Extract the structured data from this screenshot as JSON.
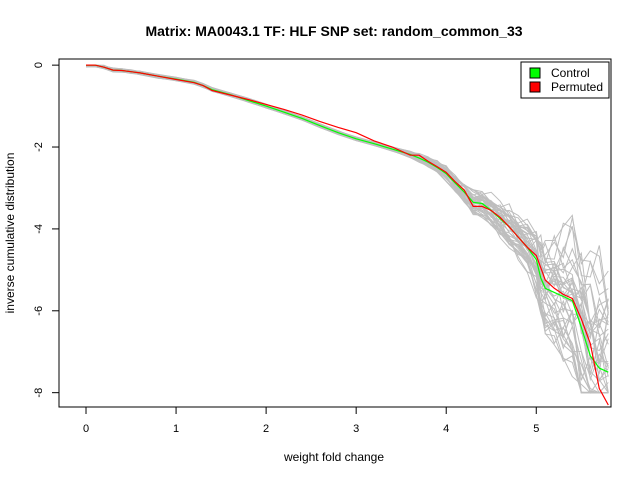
{
  "chart_data": {
    "type": "line",
    "title": "Matrix: MA0043.1 TF: HLF SNP set: random_common_33",
    "xlabel": "weight fold change",
    "ylabel": "inverse cumulative distribution",
    "xlim": [
      -0.3,
      5.83
    ],
    "ylim": [
      -8.35,
      0.15
    ],
    "xticks": [
      0,
      1,
      2,
      3,
      4,
      5
    ],
    "yticks": [
      0,
      -2,
      -4,
      -6,
      -8
    ],
    "legend": {
      "position": "top-right",
      "entries": [
        {
          "name": "Control",
          "color": "#00ff00"
        },
        {
          "name": "Permuted",
          "color": "#ff0000"
        }
      ]
    },
    "background_series_color": "#bebebe",
    "background_series_count": 40,
    "series": [
      {
        "name": "Control",
        "color": "#00ff00",
        "x": [
          0.0,
          0.1,
          0.2,
          0.3,
          0.4,
          0.5,
          0.6,
          0.8,
          1.0,
          1.2,
          1.3,
          1.4,
          1.6,
          1.8,
          2.0,
          2.2,
          2.4,
          2.6,
          2.8,
          3.0,
          3.2,
          3.4,
          3.6,
          3.7,
          3.8,
          3.9,
          4.0,
          4.1,
          4.2,
          4.3,
          4.4,
          4.5,
          4.6,
          4.7,
          4.8,
          4.9,
          5.0,
          5.05,
          5.1,
          5.2,
          5.3,
          5.4,
          5.5,
          5.6,
          5.7,
          5.8
        ],
        "y": [
          0.0,
          0.0,
          -0.05,
          -0.12,
          -0.13,
          -0.16,
          -0.19,
          -0.27,
          -0.34,
          -0.42,
          -0.5,
          -0.6,
          -0.72,
          -0.86,
          -1.0,
          -1.15,
          -1.3,
          -1.48,
          -1.65,
          -1.8,
          -1.92,
          -2.05,
          -2.18,
          -2.27,
          -2.37,
          -2.5,
          -2.65,
          -2.88,
          -3.1,
          -3.35,
          -3.38,
          -3.55,
          -3.75,
          -3.95,
          -4.2,
          -4.45,
          -4.75,
          -5.2,
          -5.45,
          -5.55,
          -5.65,
          -5.75,
          -6.4,
          -7.1,
          -7.4,
          -7.5
        ]
      },
      {
        "name": "Permuted",
        "color": "#ff0000",
        "x": [
          0.0,
          0.1,
          0.2,
          0.3,
          0.4,
          0.5,
          0.6,
          0.8,
          1.0,
          1.2,
          1.3,
          1.4,
          1.6,
          1.8,
          2.0,
          2.2,
          2.4,
          2.6,
          2.8,
          3.0,
          3.2,
          3.4,
          3.6,
          3.7,
          3.8,
          3.9,
          4.0,
          4.1,
          4.2,
          4.3,
          4.4,
          4.5,
          4.6,
          4.7,
          4.8,
          4.9,
          5.0,
          5.05,
          5.1,
          5.2,
          5.3,
          5.4,
          5.5,
          5.6,
          5.7,
          5.8
        ],
        "y": [
          0.0,
          0.0,
          -0.05,
          -0.12,
          -0.13,
          -0.16,
          -0.19,
          -0.27,
          -0.35,
          -0.43,
          -0.5,
          -0.62,
          -0.73,
          -0.84,
          -0.96,
          -1.08,
          -1.22,
          -1.38,
          -1.52,
          -1.65,
          -1.85,
          -2.0,
          -2.2,
          -2.2,
          -2.35,
          -2.48,
          -2.62,
          -2.85,
          -3.05,
          -3.45,
          -3.45,
          -3.55,
          -3.72,
          -3.95,
          -4.2,
          -4.45,
          -4.65,
          -4.95,
          -5.25,
          -5.45,
          -5.6,
          -5.7,
          -6.2,
          -6.8,
          -7.9,
          -8.3
        ]
      }
    ]
  }
}
